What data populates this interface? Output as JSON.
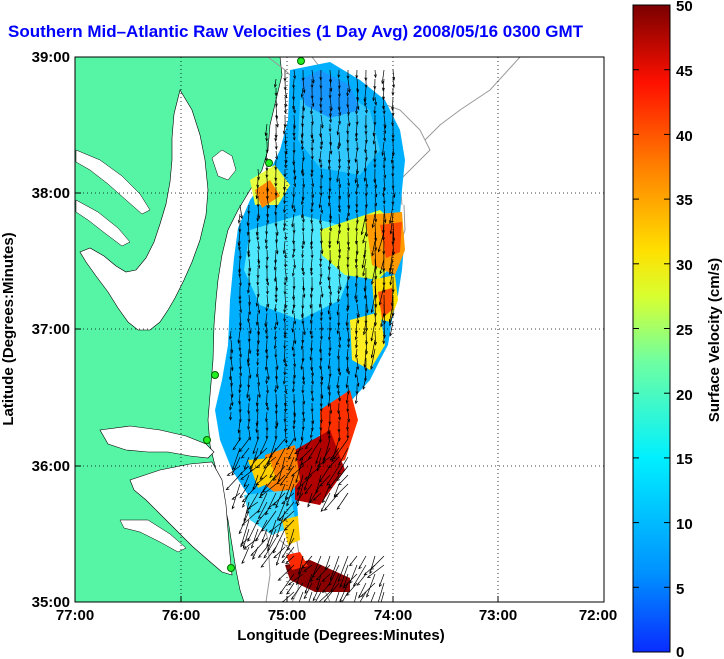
{
  "title": "Southern Mid–Atlantic Raw Velocities (1 Day Avg) 2008/05/16 0300 GMT",
  "x_axis": {
    "label": "Longitude (Degrees:Minutes)",
    "ticks": [
      "77:00",
      "76:00",
      "75:00",
      "74:00",
      "73:00",
      "72:00"
    ]
  },
  "y_axis": {
    "label": "Latitude (Degrees:Minutes)",
    "ticks": [
      "39:00",
      "38:00",
      "37:00",
      "36:00",
      "35:00"
    ]
  },
  "colorbar": {
    "label": "Surface Velocity (cm/s)",
    "min": 0,
    "max": 50,
    "ticks": [
      "0",
      "5",
      "10",
      "15",
      "20",
      "25",
      "30",
      "35",
      "40",
      "45",
      "50"
    ]
  },
  "colors": {
    "land": "#55f5a5",
    "title": "#0000ff",
    "stations": "#22ee22"
  },
  "stations": 5
}
